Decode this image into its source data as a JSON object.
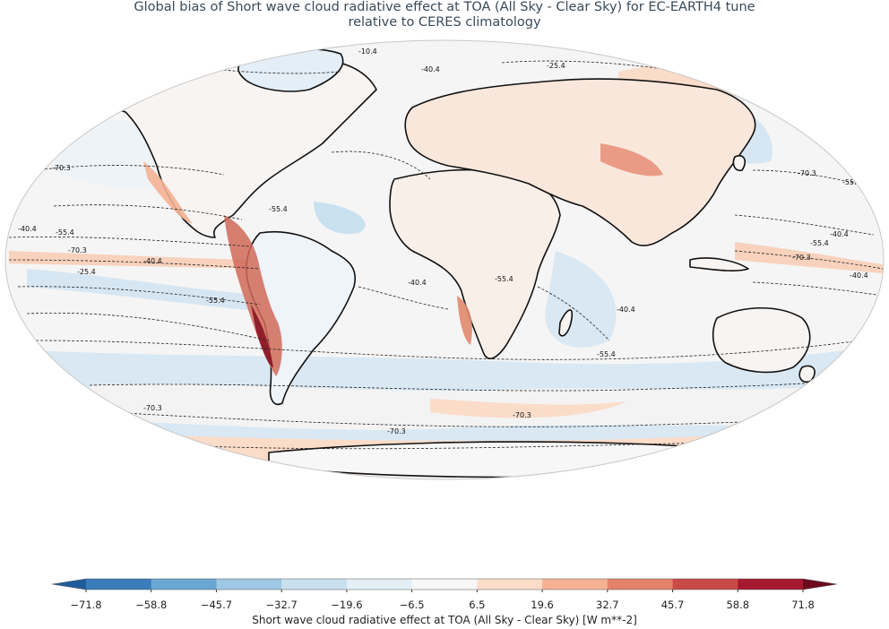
{
  "title_line1": "Global bias of Short wave cloud radiative effect at TOA (All Sky - Clear Sky) for EC-EARTH4 tune",
  "title_line2": "relative to CERES climatology",
  "colorbar": {
    "title": "Short wave cloud radiative effect at TOA (All Sky - Clear Sky) [W m**-2]",
    "ticks": [
      "−71.8",
      "−58.8",
      "−45.7",
      "−32.7",
      "−19.6",
      "−6.5",
      "6.5",
      "19.6",
      "32.7",
      "45.7",
      "58.8",
      "71.8"
    ],
    "colors": [
      "#1f5c9c",
      "#3a7dba",
      "#6aa7d3",
      "#9ec8e3",
      "#c9e0ef",
      "#e4eef6",
      "#f7f7f7",
      "#fbdcc9",
      "#f4b293",
      "#e4826a",
      "#c94a47",
      "#a7192f",
      "#6e0a1e"
    ]
  },
  "contour_labels": [
    "-10.4",
    "-25.4",
    "-40.4",
    "-55.4",
    "-70.3",
    "-40.4",
    "-55.4",
    "-70.3",
    "-25.4",
    "-40.4",
    "-55.4",
    "-70.3",
    "-40.4",
    "-55.4",
    "-70.3",
    "-55.4",
    "-40.4",
    "-25.4",
    "-70.3",
    "-55.4",
    "-40.4",
    "-55.4",
    "-70.3",
    "-40.4",
    "-55.4",
    "-70.3",
    "-25.4"
  ]
}
